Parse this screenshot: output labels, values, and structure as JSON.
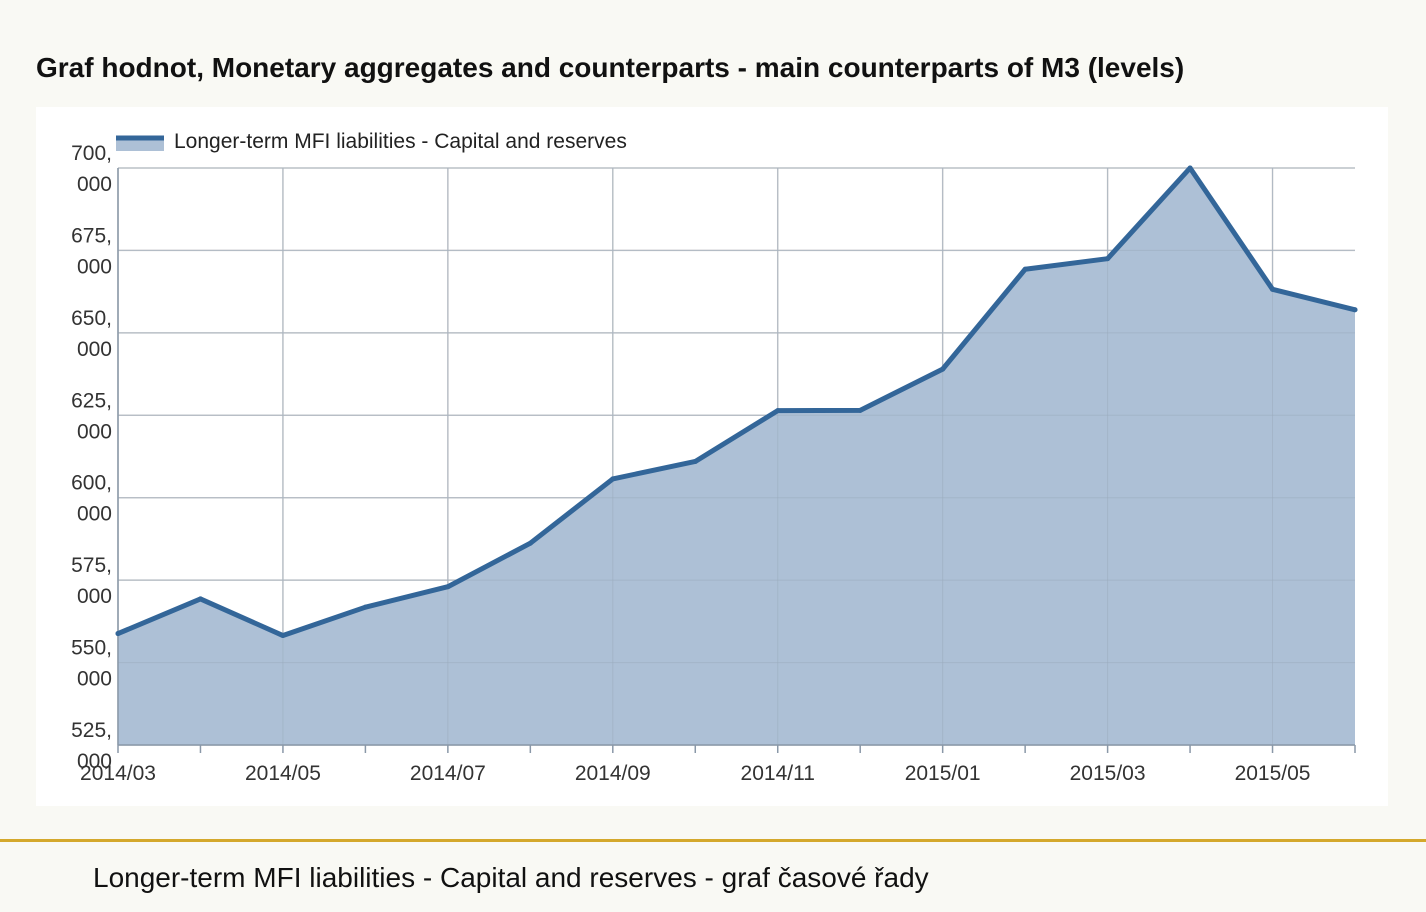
{
  "page": {
    "title": "Graf hodnot, Monetary aggregates and counterparts - main counterparts of M3 (levels)",
    "caption": "Longer-term MFI liabilities - Capital and reserves - graf časové řady"
  },
  "colors": {
    "background": "#f9f9f4",
    "panel": "#ffffff",
    "line": "#336699",
    "area": "#adc0d6",
    "grid": "#cccccc",
    "divider": "#d4a82c"
  },
  "chart_data": {
    "type": "area",
    "title": "Graf hodnot, Monetary aggregates and counterparts - main counterparts of M3 (levels)",
    "xlabel": "",
    "ylabel": "",
    "x": [
      "2014/03",
      "2014/04",
      "2014/05",
      "2014/06",
      "2014/07",
      "2014/08",
      "2014/09",
      "2014/10",
      "2014/11",
      "2014/12",
      "2015/01",
      "2015/02",
      "2015/03",
      "2015/04",
      "2015/05",
      "2015/06"
    ],
    "x_tick_labels": [
      "2014/03",
      "2014/05",
      "2014/07",
      "2014/09",
      "2014/11",
      "2015/01",
      "2015/03",
      "2015/05"
    ],
    "series": [
      {
        "name": "Longer-term MFI liabilities - Capital and reserves",
        "values": [
          558800,
          569300,
          558200,
          566800,
          573000,
          586200,
          605700,
          611000,
          626400,
          626500,
          639000,
          669300,
          672500,
          700000,
          663200,
          657000
        ]
      }
    ],
    "ylim": [
      525000,
      700000
    ],
    "y_ticks": [
      {
        "value": 700000,
        "line1": "700,",
        "line2": "000"
      },
      {
        "value": 675000,
        "line1": "675,",
        "line2": "000"
      },
      {
        "value": 650000,
        "line1": "650,",
        "line2": "000"
      },
      {
        "value": 625000,
        "line1": "625,",
        "line2": "000"
      },
      {
        "value": 600000,
        "line1": "600,",
        "line2": "000"
      },
      {
        "value": 575000,
        "line1": "575,",
        "line2": "000"
      },
      {
        "value": 550000,
        "line1": "550,",
        "line2": "000"
      },
      {
        "value": 525000,
        "line1": "525,",
        "line2": "000"
      }
    ],
    "grid": true,
    "legend_position": "top-left"
  }
}
